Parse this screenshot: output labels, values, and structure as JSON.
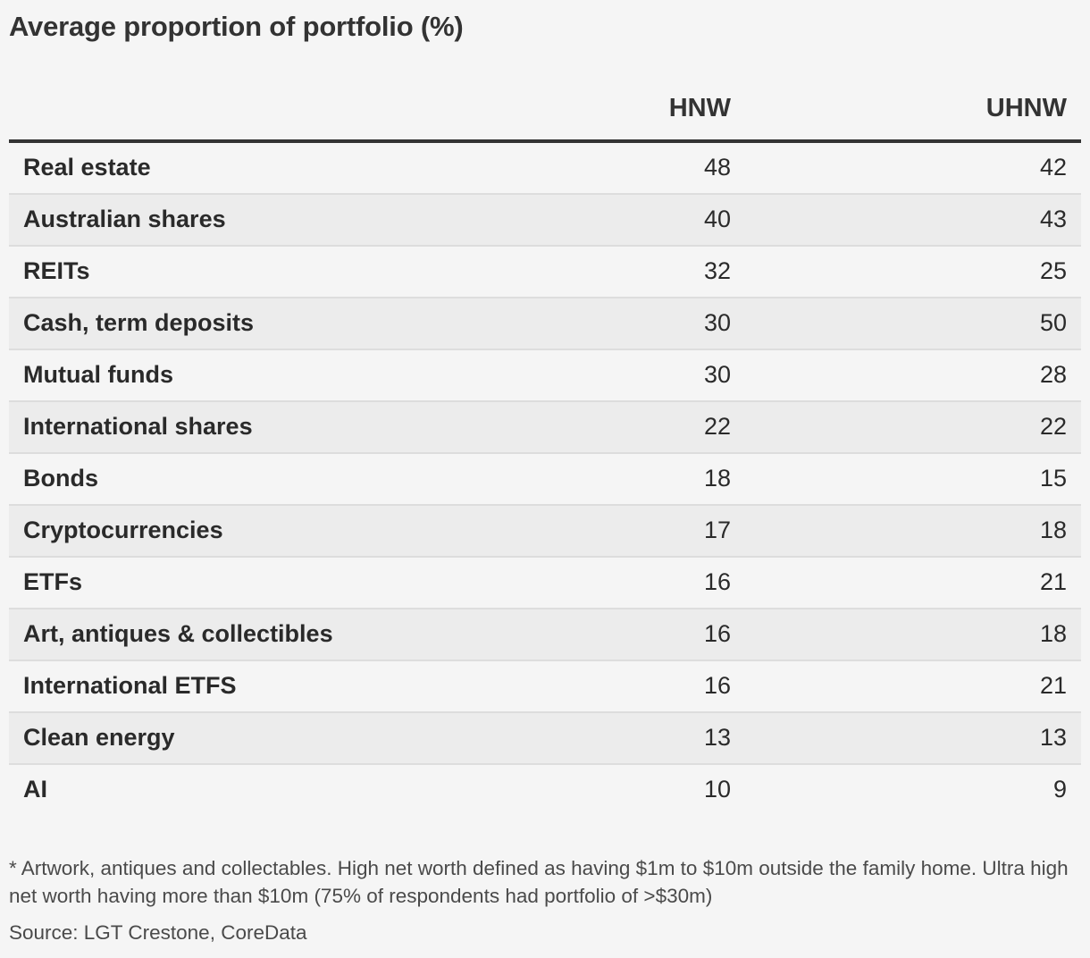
{
  "chart_data": {
    "type": "table",
    "title": "Average proportion of portfolio (%)",
    "columns": [
      "",
      "HNW",
      "UHNW"
    ],
    "rows": [
      {
        "label": "Real estate",
        "hnw": "48",
        "uhnw": "42"
      },
      {
        "label": "Australian shares",
        "hnw": "40",
        "uhnw": "43"
      },
      {
        "label": "REITs",
        "hnw": "32",
        "uhnw": "25"
      },
      {
        "label": "Cash, term deposits",
        "hnw": "30",
        "uhnw": "50"
      },
      {
        "label": "Mutual funds",
        "hnw": "30",
        "uhnw": "28"
      },
      {
        "label": "International shares",
        "hnw": "22",
        "uhnw": "22"
      },
      {
        "label": "Bonds",
        "hnw": "18",
        "uhnw": "15"
      },
      {
        "label": "Cryptocurrencies",
        "hnw": "17",
        "uhnw": "18"
      },
      {
        "label": "ETFs",
        "hnw": "16",
        "uhnw": "21"
      },
      {
        "label": "Art, antiques & collectibles",
        "hnw": "16",
        "uhnw": "18"
      },
      {
        "label": "International ETFS",
        "hnw": "16",
        "uhnw": "21"
      },
      {
        "label": "Clean energy",
        "hnw": "13",
        "uhnw": "13"
      },
      {
        "label": "AI",
        "hnw": "10",
        "uhnw": "9"
      }
    ],
    "footnote": "* Artwork, antiques and collectables. High net worth defined as having $1m to $10m outside the family home. Ultra high net worth having more than $10m (75% of respondents had portfolio of >$30m)",
    "source": "Source: LGT Crestone, CoreData"
  },
  "colors": {
    "background": "#f5f5f5",
    "stripe": "#ececec",
    "header_rule": "#333333",
    "row_rule": "#dddddd"
  }
}
